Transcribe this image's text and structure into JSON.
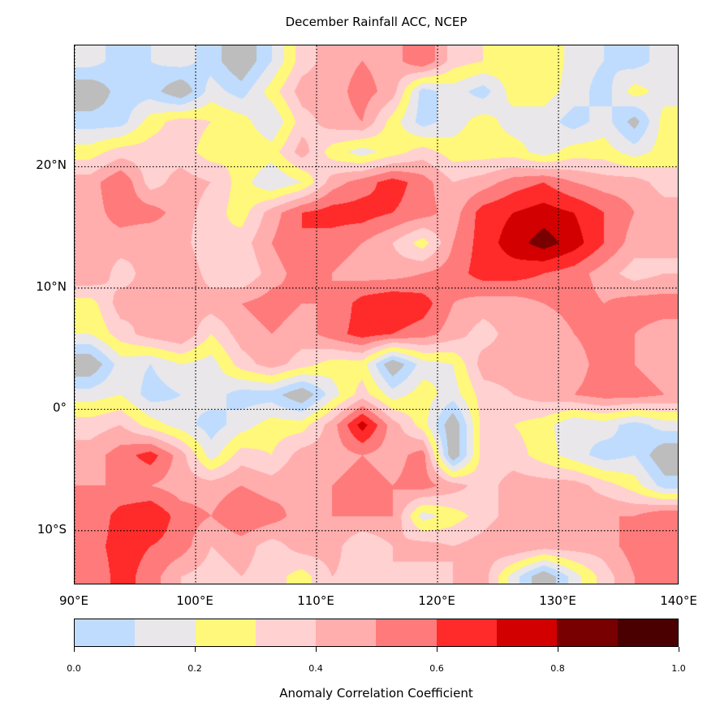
{
  "chart_data": {
    "type": "heatmap",
    "title": "December Rainfall ACC, NCEP",
    "projection": "cylindrical lon/lat map with coastlines and dotted graticule",
    "lon_range": [
      90,
      140
    ],
    "lat_range": [
      -14.5,
      30
    ],
    "x_ticks": [
      {
        "value": 90,
        "label": "90°E"
      },
      {
        "value": 100,
        "label": "100°E"
      },
      {
        "value": 110,
        "label": "110°E"
      },
      {
        "value": 120,
        "label": "120°E"
      },
      {
        "value": 130,
        "label": "130°E"
      },
      {
        "value": 140,
        "label": "140°E"
      }
    ],
    "y_ticks": [
      {
        "value": 20,
        "label": "20°N"
      },
      {
        "value": 10,
        "label": "10°N"
      },
      {
        "value": 0,
        "label": "0°"
      },
      {
        "value": -10,
        "label": "10°S"
      }
    ],
    "grid": true,
    "grid_lon_centers": [
      91.25,
      93.75,
      96.25,
      98.75,
      101.25,
      103.75,
      106.25,
      108.75,
      111.25,
      113.75,
      116.25,
      118.75,
      121.25,
      123.75,
      126.25,
      128.75,
      131.25,
      133.75,
      136.25,
      138.75
    ],
    "grid_lat_centers": [
      28.75,
      26.25,
      23.75,
      21.25,
      18.75,
      16.25,
      13.75,
      11.25,
      8.75,
      6.25,
      3.75,
      1.25,
      -1.25,
      -3.75,
      -6.25,
      -8.75,
      -11.25,
      -13.75
    ],
    "values": [
      [
        0.15,
        0.05,
        0.1,
        0.15,
        0.05,
        -0.1,
        0.1,
        0.35,
        0.45,
        0.5,
        0.45,
        0.6,
        0.35,
        0.3,
        0.25,
        0.3,
        0.15,
        0.1,
        0.05,
        0.15
      ],
      [
        -0.1,
        0.05,
        0.05,
        -0.1,
        0.15,
        0.05,
        0.25,
        0.45,
        0.45,
        0.55,
        0.45,
        0.05,
        0.15,
        0.05,
        0.25,
        0.25,
        0.15,
        0.05,
        0.25,
        0.15
      ],
      [
        0.05,
        0.05,
        0.25,
        0.35,
        0.3,
        0.25,
        0.1,
        0.35,
        0.45,
        0.5,
        0.25,
        0.05,
        0.15,
        0.25,
        0.15,
        0.15,
        0.05,
        0.15,
        -0.05,
        0.25
      ],
      [
        0.25,
        0.35,
        0.35,
        0.35,
        0.25,
        0.3,
        0.25,
        0.45,
        0.25,
        0.15,
        0.25,
        0.35,
        0.25,
        0.25,
        0.25,
        0.15,
        0.25,
        0.25,
        0.15,
        0.25
      ],
      [
        0.45,
        0.6,
        0.35,
        0.45,
        0.4,
        0.25,
        0.1,
        0.2,
        0.45,
        0.55,
        0.65,
        0.55,
        0.4,
        0.45,
        0.55,
        0.6,
        0.5,
        0.45,
        0.45,
        0.35
      ],
      [
        0.45,
        0.55,
        0.55,
        0.45,
        0.35,
        0.25,
        0.45,
        0.6,
        0.65,
        0.65,
        0.6,
        0.55,
        0.45,
        0.65,
        0.7,
        0.75,
        0.7,
        0.6,
        0.5,
        0.45
      ],
      [
        0.45,
        0.45,
        0.4,
        0.45,
        0.3,
        0.35,
        0.5,
        0.6,
        0.55,
        0.5,
        0.4,
        0.25,
        0.5,
        0.65,
        0.75,
        0.85,
        0.75,
        0.6,
        0.45,
        0.4
      ],
      [
        0.5,
        0.35,
        0.45,
        0.5,
        0.35,
        0.3,
        0.45,
        0.55,
        0.5,
        0.45,
        0.45,
        0.5,
        0.55,
        0.65,
        0.65,
        0.6,
        0.55,
        0.45,
        0.35,
        0.4
      ],
      [
        0.25,
        0.45,
        0.4,
        0.45,
        0.45,
        0.5,
        0.55,
        0.5,
        0.5,
        0.65,
        0.7,
        0.65,
        0.5,
        0.45,
        0.45,
        0.5,
        0.55,
        0.5,
        0.55,
        0.55
      ],
      [
        0.2,
        0.35,
        0.45,
        0.5,
        0.3,
        0.45,
        0.5,
        0.45,
        0.55,
        0.65,
        0.6,
        0.55,
        0.45,
        0.35,
        0.45,
        0.4,
        0.5,
        0.55,
        0.5,
        0.45
      ],
      [
        -0.1,
        0.15,
        0.1,
        0.2,
        0.15,
        0.35,
        0.45,
        0.35,
        0.25,
        0.25,
        -0.1,
        0.15,
        0.2,
        0.45,
        0.45,
        0.5,
        0.45,
        0.55,
        0.5,
        0.45
      ],
      [
        0.15,
        0.2,
        0.05,
        0.1,
        0.15,
        0.05,
        0.05,
        -0.1,
        0.15,
        0.35,
        0.15,
        0.25,
        0.15,
        0.35,
        0.4,
        0.45,
        0.5,
        0.55,
        0.55,
        0.5
      ],
      [
        0.35,
        0.4,
        0.25,
        0.15,
        0.05,
        0.15,
        0.25,
        0.25,
        0.45,
        0.75,
        0.45,
        0.25,
        -0.1,
        0.35,
        0.3,
        0.25,
        0.1,
        0.15,
        0.05,
        0.15
      ],
      [
        0.45,
        0.55,
        0.65,
        0.45,
        0.15,
        0.35,
        0.3,
        0.45,
        0.45,
        0.5,
        0.45,
        0.55,
        -0.1,
        0.35,
        0.35,
        0.25,
        0.15,
        0.05,
        0.1,
        -0.1
      ],
      [
        0.5,
        0.5,
        0.5,
        0.45,
        0.45,
        0.5,
        0.45,
        0.5,
        0.5,
        0.55,
        0.5,
        0.55,
        0.45,
        0.35,
        0.45,
        0.45,
        0.45,
        0.35,
        0.25,
        0.05
      ],
      [
        0.5,
        0.65,
        0.7,
        0.55,
        0.5,
        0.6,
        0.55,
        0.45,
        0.5,
        0.5,
        0.5,
        0.15,
        0.25,
        0.35,
        0.45,
        0.4,
        0.45,
        0.5,
        0.5,
        0.6
      ],
      [
        0.55,
        0.65,
        0.6,
        0.55,
        0.4,
        0.45,
        0.35,
        0.45,
        0.45,
        0.3,
        0.4,
        0.45,
        0.4,
        0.45,
        0.5,
        0.45,
        0.45,
        0.45,
        0.55,
        0.6
      ],
      [
        0.5,
        0.65,
        0.55,
        0.4,
        0.35,
        0.4,
        0.35,
        0.25,
        0.4,
        0.35,
        0.4,
        0.35,
        0.4,
        0.45,
        0.15,
        -0.1,
        0.15,
        0.35,
        0.5,
        0.5
      ]
    ],
    "negative_color": "#bdbdbd",
    "colorbar": {
      "label": "Anomaly Correlation Coefficient",
      "levels": [
        0.0,
        0.1,
        0.2,
        0.3,
        0.4,
        0.5,
        0.6,
        0.7,
        0.8,
        0.9,
        1.0
      ],
      "colors": [
        "#bfdcff",
        "#e9e7ea",
        "#fff87a",
        "#ffd1d1",
        "#ffadad",
        "#ff7a7a",
        "#ff2a2a",
        "#d20000",
        "#780000",
        "#4a0000"
      ],
      "tick_labels": [
        "0.0",
        "0.2",
        "0.4",
        "0.6",
        "0.8",
        "1.0"
      ]
    }
  }
}
